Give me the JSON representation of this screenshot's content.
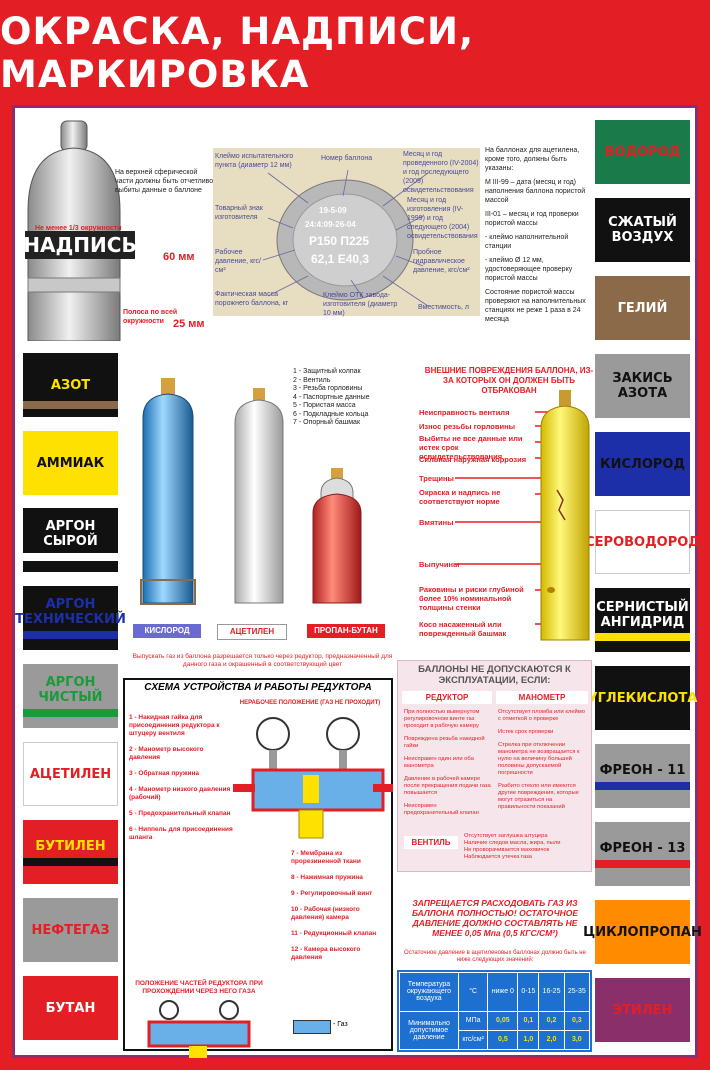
{
  "title": "ОКРАСКА, НАДПИСИ, МАРКИРОВКА",
  "cylinder_top": {
    "label": "НАДПИСЬ",
    "top_note": "На верхней сферической части должны быть отчетливо выбиты данные о баллоне",
    "one_third": "Не менее 1/3 окружности",
    "height_60": "60 мм",
    "stripe_note": "Полоса по всей окружности",
    "stripe_25": "25 мм"
  },
  "stamp": {
    "labels": [
      "Клеймо испытательного пункта (диаметр 12 мм)",
      "Номер баллона",
      "Месяц и год проведенного (IV-2004) и год последующего (2009) освидетельствования",
      "Товарный знак изготовителя",
      "Месяц и год изготовления (IV-1999) и год следующего (2004) освидетельствования",
      "Рабочее давление, кгс/см²",
      "Пробное гидравлическое давление, кгс/см²",
      "Фактическая масса порожнего баллона, кг",
      "Клеймо ОТК завода-изготовителя (диаметр 10 мм)",
      "Вместимость, л"
    ],
    "marks": [
      "19-5-09",
      "24:4:09-26-04",
      "Р150 П225",
      "62,1 Е40,3"
    ]
  },
  "acetylene_notes": {
    "intro": "На баллонах для ацетилена, кроме того, должны быть указаны:",
    "m": "М III-99 – дата (месяц и год) наполнения баллона пористой массой",
    "h": "III-01 – месяц и год проверки пористой массы",
    "k1": "- клеймо наполнительной станции",
    "k2": "- клеймо Ø 12 мм, удостоверяющее проверку пористой массы",
    "state": "Состояние пористой массы проверяют на наполнительных станциях не реже 1 раза в 24 месяца"
  },
  "left_labels": [
    {
      "text": "АЗОТ",
      "bg": "#111111",
      "fg": "#ffe100",
      "stripe": "#8b6a4a"
    },
    {
      "text": "АММИАК",
      "bg": "#ffe100",
      "fg": "#111111",
      "stripe": ""
    },
    {
      "text": "АРГОН СЫРОЙ",
      "bg": "#111111",
      "fg": "#ffffff",
      "stripe": "#ffffff"
    },
    {
      "text": "АРГОН ТЕХНИЧЕСКИЙ",
      "bg": "#111111",
      "fg": "#1d2fa8",
      "stripe": "#1d2fa8"
    },
    {
      "text": "АРГОН ЧИСТЫЙ",
      "bg": "#9a9a9a",
      "fg": "#1a9a3a",
      "stripe": "#1a9a3a"
    },
    {
      "text": "АЦЕТИЛЕН",
      "bg": "#ffffff",
      "fg": "#e31e24",
      "stripe": ""
    },
    {
      "text": "БУТИЛЕН",
      "bg": "#e31e24",
      "fg": "#ffe100",
      "stripe": "#111111"
    },
    {
      "text": "НЕФТЕГАЗ",
      "bg": "#9a9a9a",
      "fg": "#e31e24",
      "stripe": ""
    },
    {
      "text": "БУТАН",
      "bg": "#e31e24",
      "fg": "#ffffff",
      "stripe": ""
    }
  ],
  "right_labels": [
    {
      "text": "ВОДОРОД",
      "bg": "#1a7a4a",
      "fg": "#e31e24",
      "stripe": ""
    },
    {
      "text": "СЖАТЫЙ ВОЗДУХ",
      "bg": "#111111",
      "fg": "#ffffff",
      "stripe": ""
    },
    {
      "text": "ГЕЛИЙ",
      "bg": "#8b6a4a",
      "fg": "#ffffff",
      "stripe": ""
    },
    {
      "text": "ЗАКИСЬ АЗОТА",
      "bg": "#9a9a9a",
      "fg": "#111111",
      "stripe": ""
    },
    {
      "text": "КИСЛОРОД",
      "bg": "#1d2fa8",
      "fg": "#111111",
      "stripe": ""
    },
    {
      "text": "СЕРОВОДОРОД",
      "bg": "#ffffff",
      "fg": "#e31e24",
      "stripe": ""
    },
    {
      "text": "СЕРНИСТЫЙ АНГИДРИД",
      "bg": "#111111",
      "fg": "#ffffff",
      "stripe": "#ffe100"
    },
    {
      "text": "УГЛЕКИСЛОТА",
      "bg": "#111111",
      "fg": "#ffe100",
      "stripe": ""
    },
    {
      "text": "ФРЕОН - 11",
      "bg": "#9a9a9a",
      "fg": "#111111",
      "stripe": "#1d2fa8"
    },
    {
      "text": "ФРЕОН - 13",
      "bg": "#9a9a9a",
      "fg": "#111111",
      "stripe": "#e31e24"
    },
    {
      "text": "ЦИКЛОПРОПАН",
      "bg": "#ff8c00",
      "fg": "#111111",
      "stripe": ""
    },
    {
      "text": "ЭТИЛЕН",
      "bg": "#8b2f6b",
      "fg": "#e31e24",
      "stripe": ""
    }
  ],
  "cylinder_parts": [
    "1 - Защитный колпак",
    "2 - Вентиль",
    "3 - Резьба горловины",
    "4 - Паспортные данные",
    "5 - Пористая масса",
    "6 - Подкладные кольца",
    "7 - Опорный башмак"
  ],
  "cylinder_names": [
    "КИСЛОРОД",
    "АЦЕТИЛЕН",
    "ПРОПАН-БУТАН"
  ],
  "damage": {
    "heading": "ВНЕШНИЕ ПОВРЕЖДЕНИЯ БАЛЛОНА, ИЗ-ЗА КОТОРЫХ ОН ДОЛЖЕН БЫТЬ ОТБРАКОВАН",
    "items": [
      "Неисправность вентиля",
      "Износ резьбы горловины",
      "Выбиты не все данные или истек срок освидетельствования",
      "Сильная наружная коррозия",
      "Трещины",
      "Окраска и надпись не соответствуют норме",
      "Вмятины",
      "Выпучины",
      "Раковины и риски глубиной более 10% номинальной толщины стенки",
      "Косо насаженный или поврежденный башмак"
    ]
  },
  "reducer": {
    "note": "Выпускать газ из баллона разрешается только через редуктор, предназначенный для данного газа и окрашенный в соответствующий цвет",
    "heading": "СХЕМА УСТРОЙСТВА И РАБОТЫ РЕДУКТОРА",
    "nonwork": "НЕРАБОЧЕЕ ПОЛОЖЕНИЕ (ГАЗ НЕ ПРОХОДИТ)",
    "parts_left": [
      "1 - Накидная гайка для присоединения редуктора к штуцеру вентиля",
      "2 - Манометр высокого давления",
      "3 - Обратная пружина",
      "4 - Манометр низкого давления (рабочий)",
      "5 - Предохранительный клапан",
      "6 - Ниппель для присоединения шланга"
    ],
    "position_title": "ПОЛОЖЕНИЕ ЧАСТЕЙ РЕДУКТОРА ПРИ ПРОХОЖДЕНИИ ЧЕРЕЗ НЕГО ГАЗА",
    "parts_right": [
      "7 - Мембрана из прорезиненной ткани",
      "8 - Нажимная пружина",
      "9 - Регулировочный винт",
      "10 - Рабочая (низкого давления) камера",
      "11 - Редукционный клапан",
      "12 - Камера высокого давления"
    ],
    "gas": "- Газ"
  },
  "notallowed": {
    "heading": "БАЛЛОНЫ НЕ ДОПУСКАЮТСЯ К ЭКСПЛУАТАЦИИ, ЕСЛИ:",
    "col1_title": "РЕДУКТОР",
    "col2_title": "МАНОМЕТР",
    "col1": [
      "При полностью вывернутом регулировочном винте газ проходит в рабочую камеру",
      "Повреждена резьба накидной гайки",
      "Неисправен один или оба манометра",
      "Давление в рабочей камере после прекращения подачи газа повышается",
      "Неисправен предохранительный клапан"
    ],
    "col2": [
      "Отсутствует пломба или клеймо с отметкой о проверке",
      "Истек срок проверки",
      "Стрелка при отключении манометра не возвращается к нулю на величину большей половины допускаемой погрешности",
      "Разбито стекло или имеются другие повреждения, которые могут отразиться на правильности показаний"
    ],
    "valve_title": "ВЕНТИЛЬ",
    "valve": [
      "Отсутствует заглушка штуцера",
      "Наличие следов масла, жира, пыли",
      "Не проворачивается маховичок",
      "Наблюдается утечка газа"
    ]
  },
  "forbidden": "ЗАПРЕЩАЕТСЯ РАСХОДОВАТЬ ГАЗ ИЗ БАЛЛОНА ПОЛНОСТЬЮ! ОСТАТОЧНОЕ ДАВЛЕНИЕ ДОЛЖНО СОСТАВЛЯТЬ НЕ МЕНЕЕ 0,05 Мпа (0,5 КГС/СМ²)",
  "residual": {
    "caption": "Остаточное давление в ацетиленовых баллонах должно быть не ниже следующих значений:",
    "head": [
      "Температура окружающего воздуха",
      "°С",
      "ниже 0",
      "0-15",
      "16-25",
      "25-35"
    ],
    "row_label": "Минимально допустимое давление",
    "units": [
      "МПа",
      "кгс/см²"
    ],
    "mpa": [
      "0,05",
      "0,1",
      "0,2",
      "0,3"
    ],
    "kgs": [
      "0,5",
      "1,0",
      "2,0",
      "3,0"
    ]
  }
}
